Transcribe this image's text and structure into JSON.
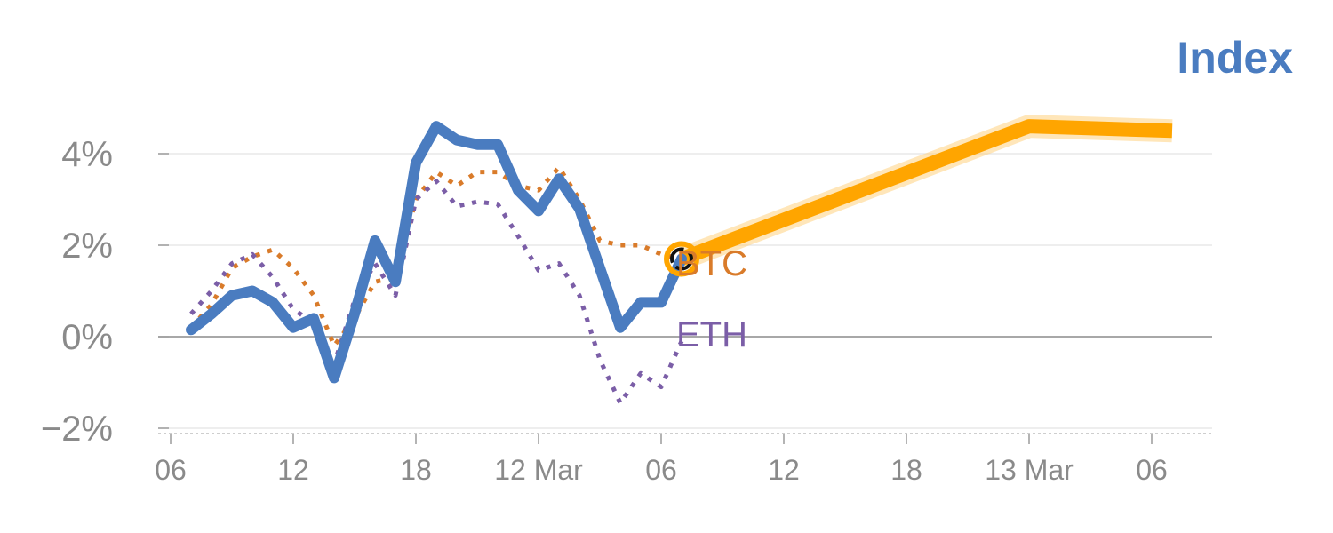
{
  "chart_data": {
    "type": "line",
    "title": "Index",
    "xlabel": "",
    "ylabel": "",
    "ylim": [
      -2.1,
      4.6
    ],
    "yticks": [
      {
        "value": -2,
        "label": "−2%"
      },
      {
        "value": 0,
        "label": "0%"
      },
      {
        "value": 2,
        "label": "2%"
      },
      {
        "value": 4,
        "label": "4%"
      }
    ],
    "xticks": [
      {
        "x": 0,
        "label": "06"
      },
      {
        "x": 6,
        "label": "12"
      },
      {
        "x": 12,
        "label": "18"
      },
      {
        "x": 18,
        "label": "12 Mar"
      },
      {
        "x": 24,
        "label": "06"
      },
      {
        "x": 30,
        "label": "12"
      },
      {
        "x": 36,
        "label": "18"
      },
      {
        "x": 42,
        "label": "13 Mar"
      },
      {
        "x": 48,
        "label": "06"
      }
    ],
    "xlim": [
      0,
      51
    ],
    "grid": true,
    "series": [
      {
        "name": "",
        "style": "solid",
        "color": "#4a7cc0",
        "points": [
          [
            1,
            0.15
          ],
          [
            2,
            0.5
          ],
          [
            3,
            0.9
          ],
          [
            4,
            1.0
          ],
          [
            5,
            0.75
          ],
          [
            6,
            0.2
          ],
          [
            7,
            0.4
          ],
          [
            8,
            -0.9
          ],
          [
            9,
            0.5
          ],
          [
            10,
            2.1
          ],
          [
            11,
            1.2
          ],
          [
            12,
            3.8
          ],
          [
            13,
            4.6
          ],
          [
            14,
            4.3
          ],
          [
            15,
            4.2
          ],
          [
            16,
            4.2
          ],
          [
            17,
            3.2
          ],
          [
            18,
            2.75
          ],
          [
            19,
            3.45
          ],
          [
            20,
            2.8
          ],
          [
            21,
            1.5
          ],
          [
            22,
            0.2
          ],
          [
            23,
            0.75
          ],
          [
            24,
            0.75
          ],
          [
            25,
            1.7
          ]
        ]
      },
      {
        "name": "BTC",
        "style": "dotted",
        "color": "#d97b2a",
        "points": [
          [
            1,
            0.2
          ],
          [
            2,
            0.7
          ],
          [
            3,
            1.5
          ],
          [
            4,
            1.75
          ],
          [
            5,
            1.9
          ],
          [
            6,
            1.5
          ],
          [
            7,
            0.9
          ],
          [
            8,
            -0.2
          ],
          [
            9,
            0.4
          ],
          [
            10,
            1.2
          ],
          [
            11,
            1.3
          ],
          [
            12,
            3.0
          ],
          [
            13,
            3.6
          ],
          [
            14,
            3.3
          ],
          [
            15,
            3.6
          ],
          [
            16,
            3.6
          ],
          [
            17,
            3.3
          ],
          [
            18,
            3.2
          ],
          [
            19,
            3.7
          ],
          [
            20,
            3.0
          ],
          [
            21,
            2.1
          ],
          [
            22,
            2.0
          ],
          [
            23,
            2.0
          ],
          [
            24,
            1.8
          ],
          [
            25,
            1.7
          ]
        ]
      },
      {
        "name": "ETH",
        "style": "dotted",
        "color": "#7b5ea7",
        "points": [
          [
            1,
            0.5
          ],
          [
            2,
            1.0
          ],
          [
            3,
            1.6
          ],
          [
            4,
            1.8
          ],
          [
            5,
            1.3
          ],
          [
            6,
            0.6
          ],
          [
            7,
            0.3
          ],
          [
            8,
            -0.6
          ],
          [
            9,
            0.8
          ],
          [
            10,
            1.6
          ],
          [
            11,
            0.9
          ],
          [
            12,
            3.0
          ],
          [
            13,
            3.4
          ],
          [
            14,
            2.85
          ],
          [
            15,
            2.95
          ],
          [
            16,
            2.9
          ],
          [
            17,
            2.2
          ],
          [
            18,
            1.45
          ],
          [
            19,
            1.6
          ],
          [
            20,
            0.9
          ],
          [
            21,
            -0.5
          ],
          [
            22,
            -1.45
          ],
          [
            23,
            -0.8
          ],
          [
            24,
            -1.1
          ],
          [
            25,
            -0.1
          ]
        ]
      },
      {
        "name": "",
        "style": "projection",
        "color": "#ffa500",
        "points": [
          [
            25,
            1.7
          ],
          [
            42,
            4.6
          ],
          [
            49,
            4.5
          ]
        ]
      }
    ],
    "marker": {
      "x": 25,
      "y": 1.7
    }
  }
}
